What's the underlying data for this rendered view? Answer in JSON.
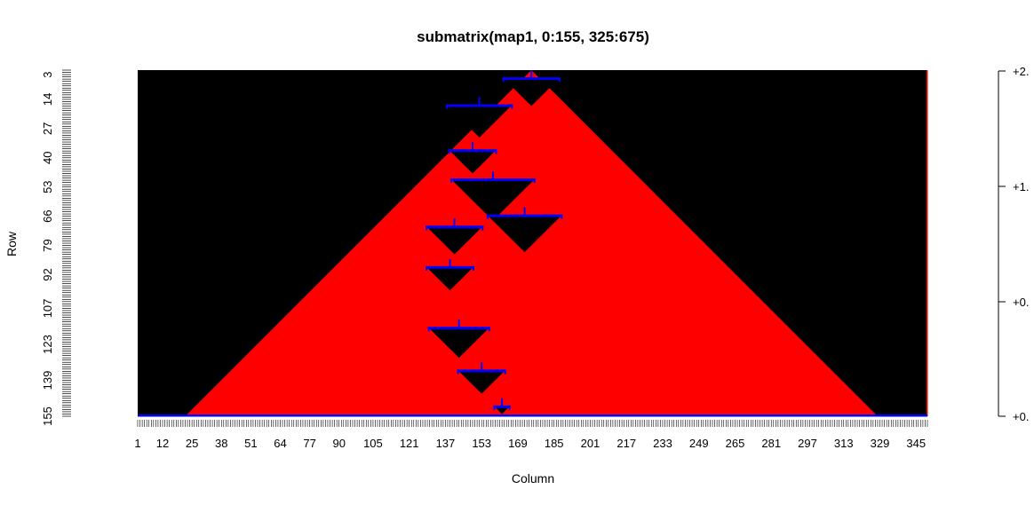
{
  "chart_data": {
    "type": "heatmap",
    "title": "submatrix(map1, 0:155, 325:675)",
    "xlabel": "Column",
    "ylabel": "Row",
    "n_rows": 155,
    "n_cols": 350,
    "x_tick_labels": [
      "1",
      "12",
      "25",
      "38",
      "51",
      "64",
      "77",
      "90",
      "105",
      "121",
      "137",
      "153",
      "169",
      "185",
      "201",
      "217",
      "233",
      "249",
      "265",
      "281",
      "297",
      "313",
      "329",
      "345"
    ],
    "y_tick_labels": [
      "3",
      "14",
      "27",
      "40",
      "53",
      "66",
      "79",
      "92",
      "107",
      "123",
      "139",
      "155"
    ],
    "colorbar_tick_labels": [
      "+2.",
      "+1.",
      "+0.",
      "+0."
    ],
    "colors": {
      "background": "#000000",
      "fill": "#ff0000",
      "boundary": "#0000ff"
    },
    "triangle": {
      "apex_column": 175,
      "apex_row": 1,
      "base_left_column": 22,
      "base_right_column": 328,
      "base_row": 155
    },
    "cavities": [
      {
        "apex_column": 175,
        "apex_row": 17,
        "half_width": 12
      },
      {
        "apex_column": 152,
        "apex_row": 31,
        "half_width": 14
      },
      {
        "apex_column": 149,
        "apex_row": 47,
        "half_width": 10
      },
      {
        "apex_column": 172,
        "apex_row": 82,
        "half_width": 16
      },
      {
        "apex_column": 158,
        "apex_row": 68,
        "half_width": 18
      },
      {
        "apex_column": 141,
        "apex_row": 83,
        "half_width": 12
      },
      {
        "apex_column": 139,
        "apex_row": 99,
        "half_width": 10
      },
      {
        "apex_column": 143,
        "apex_row": 129,
        "half_width": 13
      },
      {
        "apex_column": 153,
        "apex_row": 145,
        "half_width": 10
      },
      {
        "apex_column": 162,
        "apex_row": 154,
        "half_width": 3
      }
    ]
  }
}
